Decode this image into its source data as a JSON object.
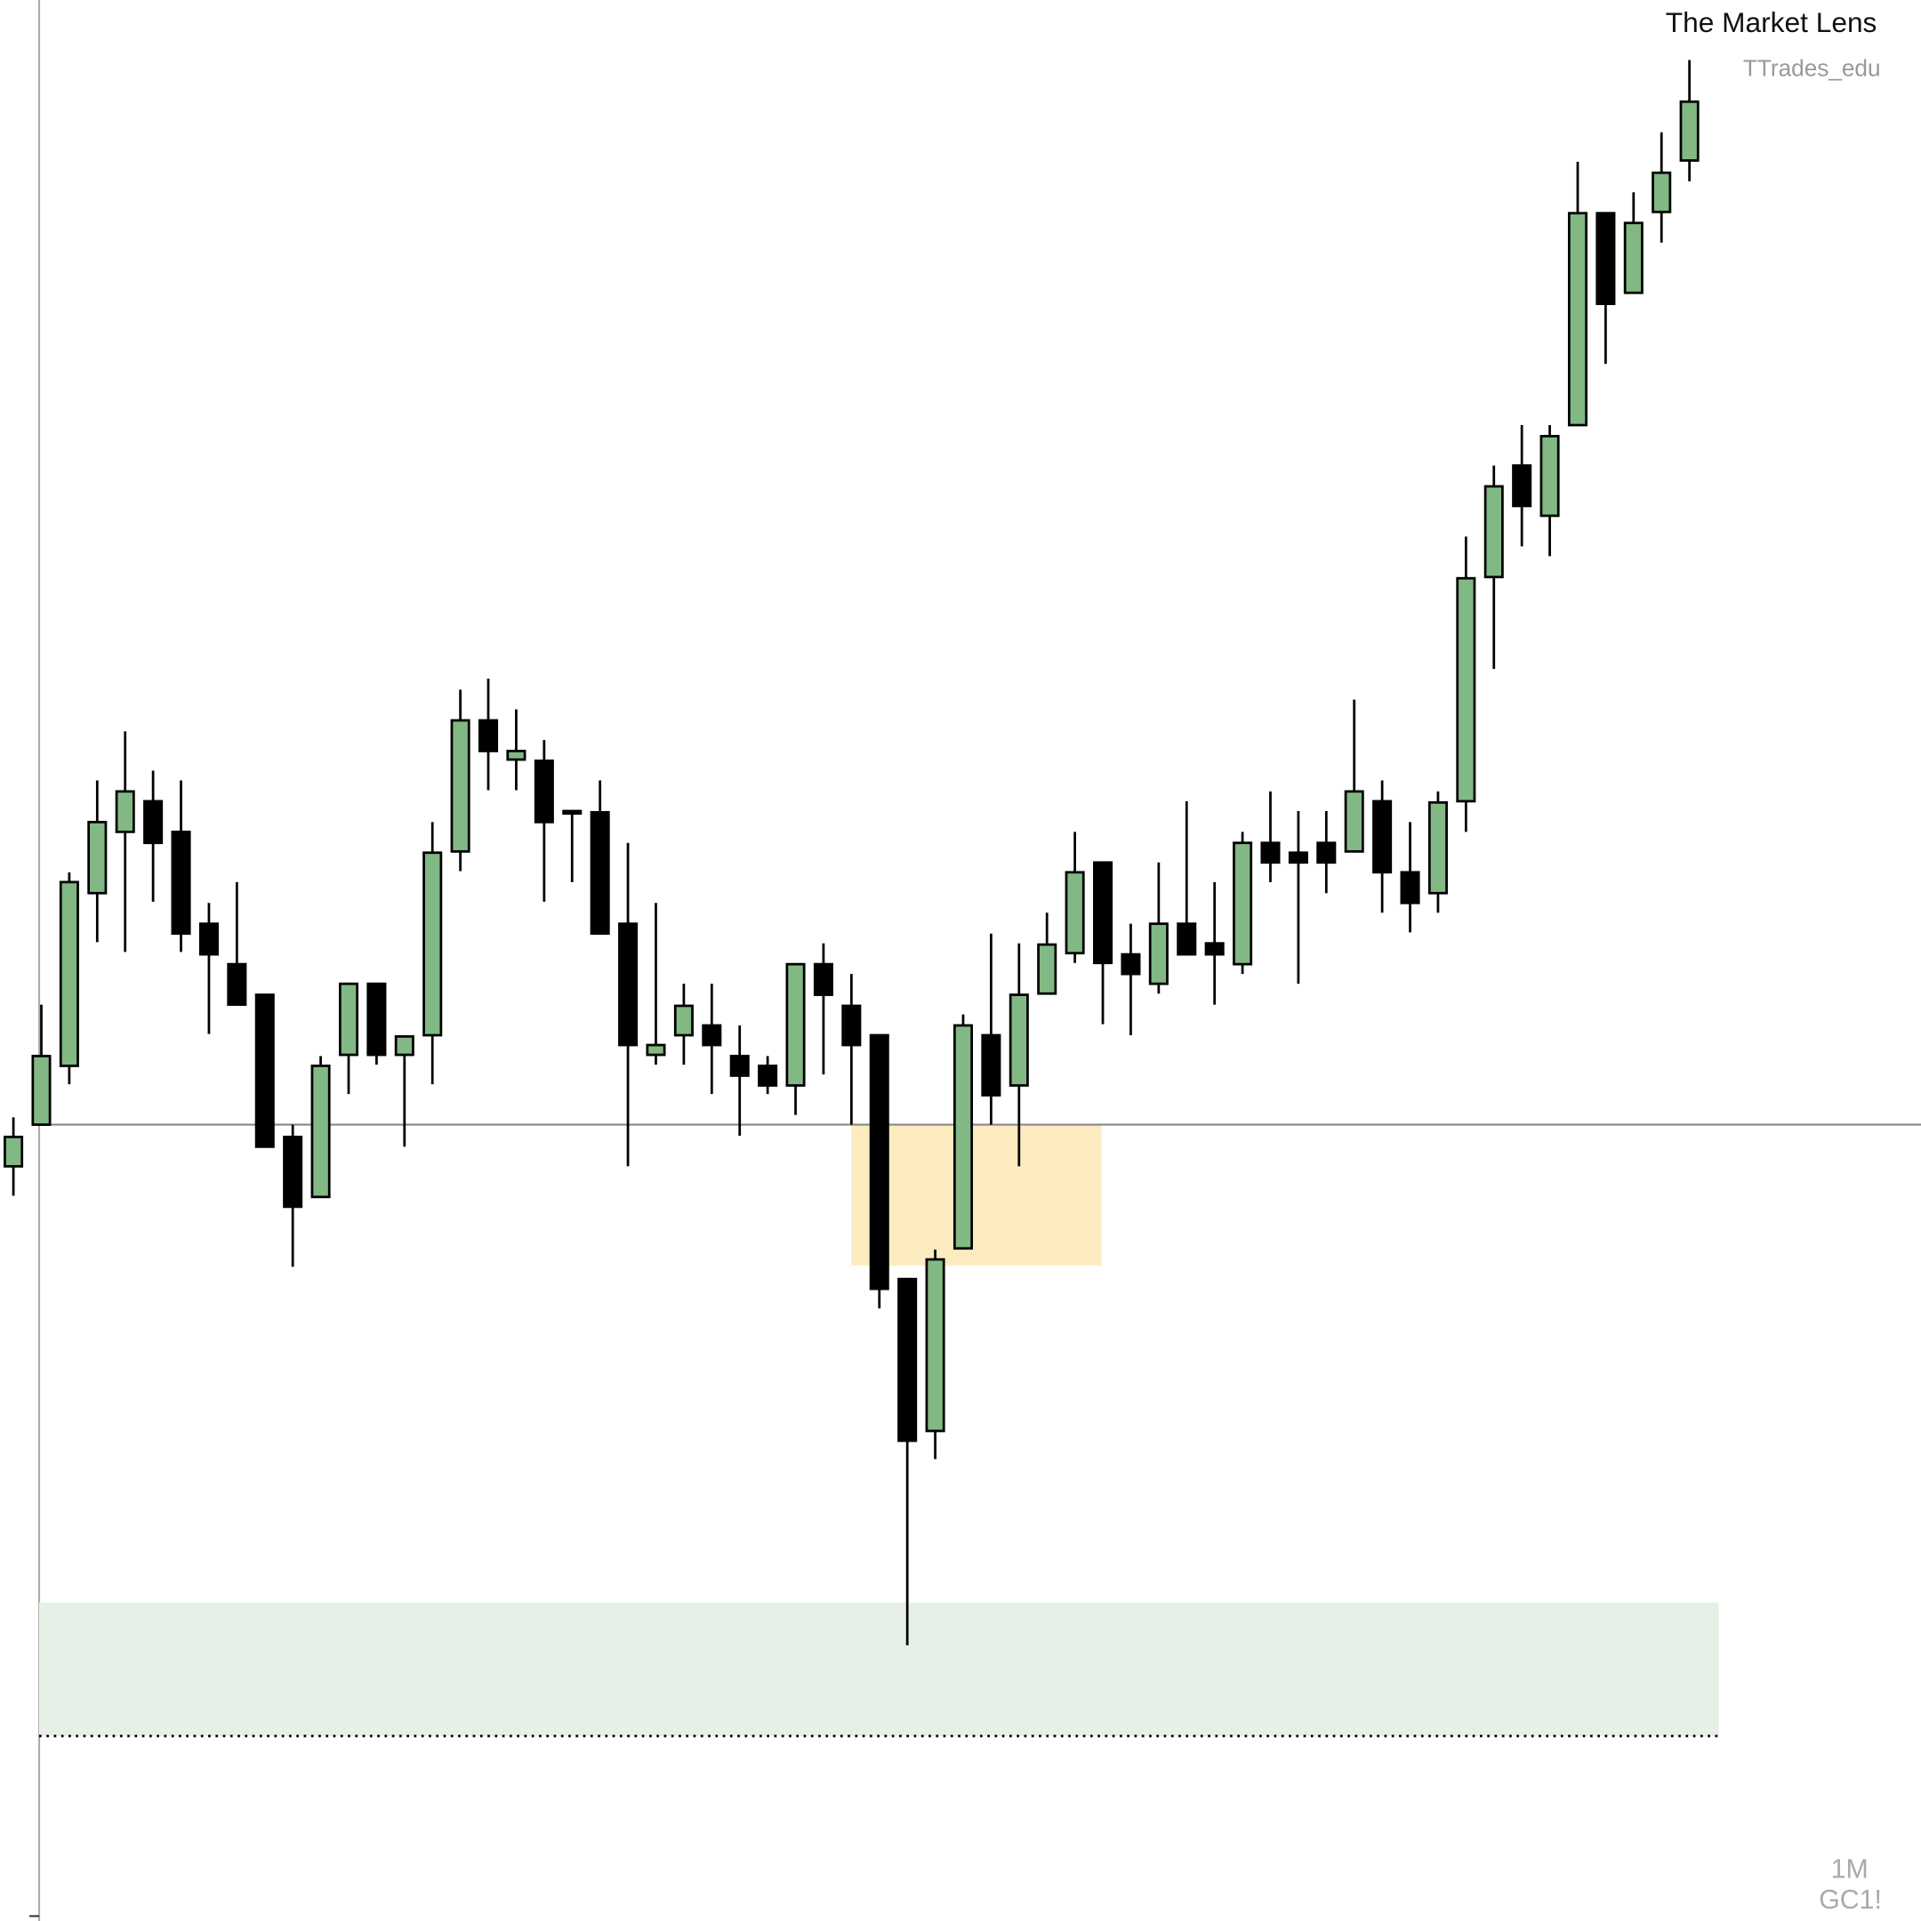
{
  "chart_data": {
    "type": "candlestick",
    "title": "The Market Lens",
    "subtitle": "TTrades_edu",
    "interval": "1M",
    "symbol": "GC1!",
    "up_color": "#82b883",
    "down_color": "#000000",
    "xlim": [
      -0.48,
      68.29
    ],
    "ylim": [
      0,
      1568
    ],
    "open": [
      616,
      650,
      698,
      839,
      889,
      914,
      889,
      814,
      781,
      756,
      640,
      591,
      707,
      765,
      707,
      723,
      873,
      980,
      948,
      947,
      906,
      905,
      814,
      707,
      723,
      731,
      706,
      698,
      682,
      781,
      747,
      723,
      524,
      400,
      549,
      723,
      682,
      757,
      790,
      864,
      789,
      765,
      814,
      798,
      781,
      880,
      872,
      880,
      873,
      914,
      856,
      839,
      914,
      1097,
      1188,
      1147,
      1221,
      1394,
      1329,
      1395,
      1437
    ],
    "high": [
      656,
      748,
      856,
      931,
      971,
      939,
      931,
      831,
      848,
      756,
      650,
      706,
      765,
      765,
      722,
      897,
      1005,
      1014,
      989,
      964,
      906,
      931,
      880,
      831,
      765,
      765,
      731,
      706,
      781,
      798,
      773,
      723,
      524,
      548,
      740,
      806,
      798,
      823,
      889,
      864,
      814,
      864,
      914,
      848,
      889,
      922,
      906,
      906,
      997,
      931,
      897,
      922,
      1130,
      1188,
      1221,
      1221,
      1436,
      1394,
      1411,
      1460,
      1519
    ],
    "low": [
      592,
      650,
      683,
      799,
      791,
      832,
      791,
      724,
      748,
      632,
      534,
      591,
      675,
      699,
      632,
      683,
      857,
      923,
      923,
      832,
      848,
      806,
      616,
      699,
      699,
      675,
      641,
      675,
      658,
      691,
      650,
      500,
      225,
      377,
      549,
      650,
      616,
      757,
      782,
      732,
      723,
      757,
      789,
      748,
      773,
      848,
      765,
      839,
      873,
      823,
      807,
      823,
      889,
      1022,
      1122,
      1114,
      1221,
      1271,
      1329,
      1370,
      1420
    ],
    "close": [
      640,
      706,
      848,
      897,
      922,
      880,
      806,
      789,
      748,
      632,
      583,
      698,
      765,
      707,
      722,
      872,
      980,
      955,
      955,
      897,
      906,
      806,
      715,
      715,
      747,
      715,
      690,
      682,
      781,
      756,
      715,
      516,
      392,
      540,
      731,
      674,
      756,
      797,
      856,
      782,
      773,
      814,
      789,
      789,
      880,
      864,
      864,
      864,
      922,
      856,
      831,
      913,
      1096,
      1171,
      1155,
      1212,
      1394,
      1320,
      1386,
      1427,
      1485
    ],
    "hline": {
      "value": 650,
      "color": "#888888",
      "from": 0.92
    },
    "zones": [
      {
        "low": 535,
        "high": 650,
        "from": 30.0,
        "to": 38.95,
        "color": "#fdebc0"
      },
      {
        "low": 151,
        "high": 260,
        "from": 0.92,
        "to": 61.05,
        "color": "#e6f0e6"
      }
    ],
    "dotted_line": {
      "value": 151,
      "from": 0.92,
      "to": 61.05,
      "color": "#000000"
    }
  }
}
